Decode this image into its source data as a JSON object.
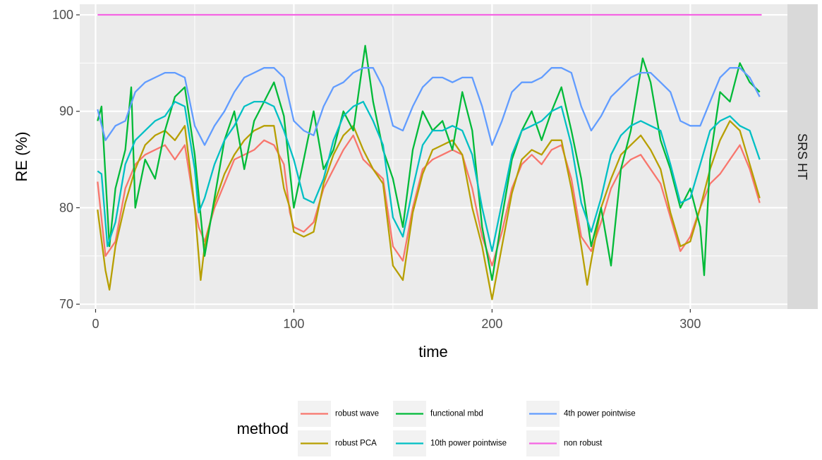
{
  "chart_data": {
    "type": "line",
    "xlabel": "time",
    "ylabel": "RE (%)",
    "xlim": [
      -8,
      349
    ],
    "ylim": [
      69.5,
      101.1
    ],
    "x_ticks": [
      0,
      100,
      200,
      300
    ],
    "y_ticks": [
      70,
      80,
      90,
      100
    ],
    "x_tick_labels": [
      "0",
      "100",
      "200",
      "300"
    ],
    "y_tick_labels": [
      "70",
      "80",
      "90",
      "100"
    ],
    "facet_label": "SRS HT",
    "grid": true,
    "legend": {
      "title": "method",
      "placement": "bottom",
      "ncol": 3
    },
    "series": [
      {
        "name": "robust wave",
        "color": "#F8766D",
        "x": [
          1,
          5,
          10,
          15,
          20,
          25,
          30,
          35,
          40,
          45,
          50,
          52,
          55,
          60,
          65,
          70,
          75,
          80,
          85,
          90,
          95,
          98,
          100,
          105,
          110,
          115,
          120,
          125,
          130,
          135,
          140,
          145,
          150,
          155,
          160,
          165,
          170,
          175,
          180,
          185,
          190,
          195,
          200,
          205,
          210,
          215,
          220,
          225,
          230,
          235,
          240,
          245,
          250,
          255,
          260,
          265,
          270,
          275,
          280,
          285,
          290,
          295,
          300,
          305,
          310,
          315,
          320,
          325,
          330,
          335
        ],
        "y": [
          82.7,
          75.0,
          76.5,
          82.0,
          84.5,
          85.5,
          86.0,
          86.5,
          85.0,
          86.5,
          80.0,
          78.0,
          76.5,
          80.0,
          82.5,
          85.0,
          85.5,
          86.0,
          87.0,
          86.5,
          84.5,
          79.5,
          78.0,
          77.5,
          78.5,
          82.0,
          84.0,
          86.0,
          87.5,
          85.0,
          84.0,
          83.0,
          76.0,
          74.5,
          80.0,
          84.0,
          85.0,
          85.5,
          86.0,
          85.5,
          82.0,
          77.0,
          74.0,
          77.5,
          82.0,
          84.5,
          85.5,
          84.5,
          86.0,
          86.5,
          83.0,
          77.0,
          75.5,
          78.5,
          82.0,
          84.0,
          85.0,
          85.5,
          84.0,
          82.5,
          79.0,
          75.5,
          77.0,
          80.0,
          82.5,
          83.5,
          85.0,
          86.5,
          84.0,
          80.5
        ]
      },
      {
        "name": "robust PCA",
        "color": "#B79F00",
        "x": [
          1,
          5,
          7,
          10,
          15,
          20,
          25,
          30,
          35,
          40,
          45,
          50,
          53,
          55,
          60,
          65,
          70,
          75,
          80,
          85,
          90,
          95,
          98,
          100,
          105,
          110,
          115,
          120,
          125,
          130,
          135,
          140,
          145,
          150,
          155,
          160,
          165,
          170,
          175,
          180,
          185,
          190,
          195,
          200,
          205,
          210,
          215,
          220,
          225,
          230,
          235,
          240,
          245,
          248,
          250,
          255,
          260,
          265,
          270,
          275,
          280,
          285,
          290,
          295,
          300,
          305,
          310,
          315,
          320,
          325,
          330,
          335
        ],
        "y": [
          79.8,
          73.5,
          71.5,
          76.0,
          80.5,
          84.0,
          86.5,
          87.5,
          88.0,
          87.0,
          88.5,
          80.0,
          72.5,
          76.0,
          80.5,
          83.5,
          85.5,
          87.0,
          88.0,
          88.5,
          88.5,
          82.0,
          80.0,
          77.5,
          77.0,
          77.5,
          82.5,
          85.5,
          87.5,
          88.5,
          86.0,
          84.0,
          82.5,
          74.0,
          72.5,
          79.5,
          83.5,
          86.0,
          86.5,
          87.0,
          85.5,
          80.0,
          76.0,
          70.5,
          76.0,
          81.5,
          85.0,
          86.0,
          85.5,
          87.0,
          87.0,
          82.0,
          76.0,
          72.0,
          74.5,
          80.0,
          83.0,
          85.5,
          86.5,
          87.5,
          86.0,
          84.0,
          79.5,
          76.0,
          76.5,
          80.0,
          84.0,
          87.0,
          89.0,
          88.0,
          84.5,
          81.0
        ]
      },
      {
        "name": "functional mbd",
        "color": "#00BA38",
        "x": [
          1,
          3,
          7,
          10,
          15,
          18,
          20,
          25,
          30,
          35,
          40,
          45,
          50,
          55,
          60,
          65,
          70,
          75,
          80,
          85,
          90,
          95,
          100,
          105,
          110,
          115,
          120,
          125,
          130,
          136,
          140,
          145,
          150,
          155,
          160,
          165,
          170,
          175,
          180,
          185,
          190,
          195,
          200,
          205,
          210,
          215,
          220,
          225,
          230,
          235,
          240,
          245,
          250,
          255,
          260,
          265,
          270,
          276,
          280,
          285,
          290,
          295,
          300,
          305,
          307,
          310,
          315,
          320,
          325,
          330,
          335
        ],
        "y": [
          89.0,
          90.5,
          76.0,
          82.0,
          86.0,
          92.5,
          80.0,
          85.0,
          83.0,
          88.0,
          91.5,
          92.5,
          85.5,
          75.0,
          81.0,
          87.0,
          90.0,
          84.0,
          89.0,
          91.0,
          93.0,
          89.5,
          80.0,
          85.0,
          90.0,
          84.0,
          86.0,
          90.0,
          88.0,
          96.8,
          91.0,
          86.0,
          83.0,
          78.0,
          86.0,
          90.0,
          88.0,
          89.0,
          86.0,
          92.0,
          88.0,
          78.0,
          72.5,
          79.0,
          85.0,
          88.0,
          90.0,
          87.0,
          90.0,
          92.5,
          88.0,
          83.0,
          76.0,
          80.0,
          74.0,
          84.0,
          88.0,
          95.5,
          93.0,
          87.0,
          84.0,
          80.0,
          82.0,
          78.0,
          73.0,
          85.0,
          92.0,
          91.0,
          95.0,
          93.0,
          92.0
        ]
      },
      {
        "name": "10th power pointwise",
        "color": "#00BFC4",
        "x": [
          1,
          3,
          6,
          10,
          15,
          20,
          25,
          30,
          35,
          40,
          45,
          50,
          52,
          55,
          60,
          65,
          70,
          75,
          80,
          85,
          90,
          95,
          100,
          105,
          110,
          115,
          120,
          125,
          130,
          135,
          140,
          145,
          150,
          155,
          160,
          165,
          170,
          175,
          180,
          185,
          190,
          195,
          200,
          205,
          210,
          215,
          220,
          225,
          230,
          235,
          240,
          245,
          250,
          255,
          260,
          265,
          270,
          275,
          280,
          285,
          290,
          295,
          300,
          305,
          310,
          315,
          320,
          325,
          330,
          335
        ],
        "y": [
          83.8,
          83.5,
          76.0,
          78.5,
          84.5,
          87.0,
          88.0,
          89.0,
          89.5,
          91.0,
          90.5,
          84.0,
          79.5,
          81.0,
          84.5,
          87.0,
          88.5,
          90.5,
          91.0,
          91.0,
          90.5,
          88.0,
          85.0,
          81.0,
          80.5,
          83.0,
          87.0,
          89.5,
          90.5,
          91.0,
          89.0,
          86.5,
          79.0,
          77.0,
          82.0,
          86.5,
          88.0,
          88.0,
          88.5,
          88.0,
          85.5,
          80.0,
          75.5,
          80.5,
          85.5,
          88.0,
          88.5,
          89.0,
          90.0,
          90.5,
          86.5,
          80.5,
          77.5,
          81.0,
          85.5,
          87.5,
          88.5,
          89.0,
          88.5,
          88.0,
          84.5,
          80.5,
          81.0,
          84.5,
          88.0,
          89.0,
          89.5,
          88.5,
          88.0,
          85.0
        ]
      },
      {
        "name": "4th power pointwise",
        "color": "#619CFF",
        "x": [
          1,
          5,
          10,
          15,
          20,
          25,
          30,
          35,
          40,
          45,
          50,
          55,
          60,
          65,
          70,
          75,
          80,
          85,
          90,
          95,
          100,
          105,
          110,
          115,
          120,
          125,
          130,
          135,
          140,
          145,
          150,
          155,
          160,
          165,
          170,
          175,
          180,
          185,
          190,
          195,
          200,
          205,
          210,
          215,
          220,
          225,
          230,
          235,
          240,
          245,
          250,
          255,
          260,
          265,
          270,
          275,
          280,
          285,
          290,
          295,
          300,
          305,
          310,
          315,
          320,
          325,
          330,
          335
        ],
        "y": [
          90.2,
          87.0,
          88.5,
          89.0,
          92.0,
          93.0,
          93.5,
          94.0,
          94.0,
          93.5,
          88.5,
          86.5,
          88.5,
          90.0,
          92.0,
          93.5,
          94.0,
          94.5,
          94.5,
          93.5,
          89.0,
          88.0,
          87.5,
          90.5,
          92.5,
          93.0,
          94.0,
          94.5,
          94.5,
          92.5,
          88.5,
          88.0,
          90.5,
          92.5,
          93.5,
          93.5,
          93.0,
          93.5,
          93.5,
          90.5,
          86.5,
          89.0,
          92.0,
          93.0,
          93.0,
          93.5,
          94.5,
          94.5,
          94.0,
          90.5,
          88.0,
          89.5,
          91.5,
          92.5,
          93.5,
          94.0,
          94.0,
          93.0,
          92.0,
          89.0,
          88.5,
          88.5,
          91.0,
          93.5,
          94.5,
          94.5,
          93.5,
          91.5
        ]
      },
      {
        "name": "non robust",
        "color": "#F564E3",
        "x": [
          1,
          336
        ],
        "y": [
          100,
          100
        ]
      }
    ]
  }
}
